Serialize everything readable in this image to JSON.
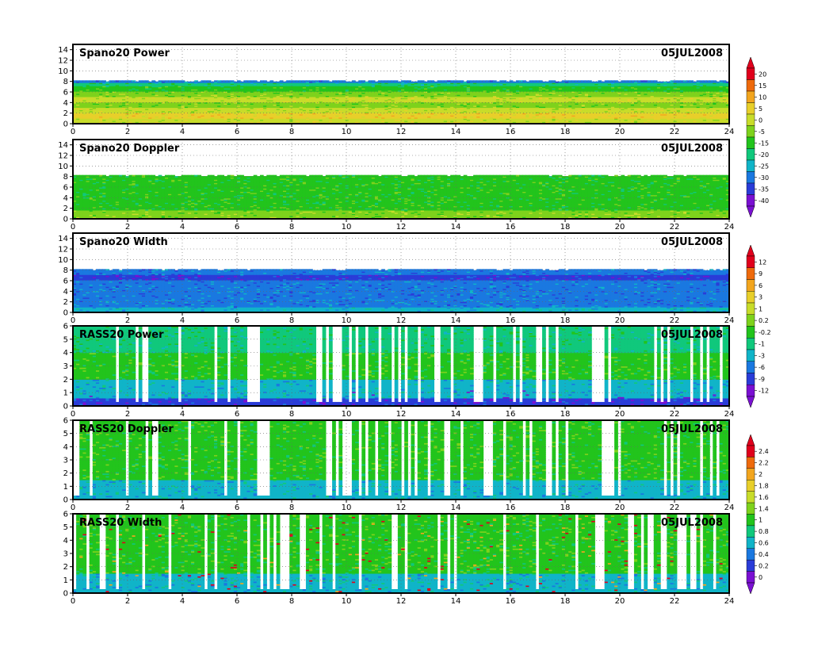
{
  "chart_data": [
    {
      "type": "heatmap",
      "title": "Spano20 Power",
      "date": "05JUL2008",
      "xlim": [
        0,
        24
      ],
      "x_ticks": [
        0,
        2,
        4,
        6,
        8,
        10,
        12,
        14,
        16,
        18,
        20,
        22,
        24
      ],
      "ylim": [
        0,
        15
      ],
      "y_ticks": [
        0,
        2,
        4,
        6,
        8,
        10,
        12,
        14
      ],
      "grid": true,
      "data_top_y": 8.2,
      "colorbar": {
        "levels": [
          "20",
          "15",
          "10",
          "5",
          "0",
          "-5",
          "-15",
          "-20",
          "-25",
          "-30",
          "-35",
          "-40"
        ],
        "colors": [
          "#e0001c",
          "#ee6a0c",
          "#f2a51e",
          "#e8cf2a",
          "#c8dc2a",
          "#7ed21c",
          "#22c41c",
          "#10c87c",
          "#10b4c8",
          "#1a78e0",
          "#2a3cd8",
          "#7a10d2"
        ]
      },
      "profile": [
        {
          "h": 0,
          "color": "#c8dc2a"
        },
        {
          "h": 1,
          "color": "#e8cf2a"
        },
        {
          "h": 2,
          "color": "#c8dc2a"
        },
        {
          "h": 3,
          "color": "#7ed21c"
        },
        {
          "h": 4,
          "color": "#c8dc2a"
        },
        {
          "h": 5,
          "color": "#7ed21c"
        },
        {
          "h": 6,
          "color": "#22c41c"
        },
        {
          "h": 7,
          "color": "#10c87c"
        },
        {
          "h": 7.6,
          "color": "#1a78e0"
        }
      ]
    },
    {
      "type": "heatmap",
      "title": "Spano20 Doppler",
      "date": "05JUL2008",
      "xlim": [
        0,
        24
      ],
      "x_ticks": [
        0,
        2,
        4,
        6,
        8,
        10,
        12,
        14,
        16,
        18,
        20,
        22,
        24
      ],
      "ylim": [
        0,
        15
      ],
      "y_ticks": [
        0,
        2,
        4,
        6,
        8,
        10,
        12,
        14
      ],
      "grid": true,
      "data_top_y": 8.3,
      "colorbar": null,
      "profile": [
        {
          "h": 0,
          "color": "#7ed21c"
        },
        {
          "h": 1.5,
          "color": "#22c41c"
        },
        {
          "h": 6,
          "color": "#22c41c"
        }
      ]
    },
    {
      "type": "heatmap",
      "title": "Spano20 Width",
      "date": "05JUL2008",
      "xlim": [
        0,
        24
      ],
      "x_ticks": [
        0,
        2,
        4,
        6,
        8,
        10,
        12,
        14,
        16,
        18,
        20,
        22,
        24
      ],
      "ylim": [
        0,
        15
      ],
      "y_ticks": [
        0,
        2,
        4,
        6,
        8,
        10,
        12,
        14
      ],
      "grid": true,
      "data_top_y": 8.2,
      "colorbar": {
        "levels": [
          "12",
          "9",
          "6",
          "3",
          "1",
          "0.2",
          "-0.2",
          "-1",
          "-3",
          "-6",
          "-9",
          "-12"
        ],
        "colors": [
          "#e0001c",
          "#ee6a0c",
          "#f2a51e",
          "#e8cf2a",
          "#c8dc2a",
          "#7ed21c",
          "#22c41c",
          "#10c87c",
          "#10b4c8",
          "#1a78e0",
          "#2a3cd8",
          "#7a10d2"
        ]
      },
      "profile": [
        {
          "h": 0,
          "color": "#10b4c8"
        },
        {
          "h": 1,
          "color": "#1a78e0"
        },
        {
          "h": 6,
          "color": "#2a3cd8"
        },
        {
          "h": 7,
          "color": "#1a78e0"
        }
      ]
    },
    {
      "type": "heatmap",
      "title": "RASS20 Power",
      "date": "05JUL2008",
      "xlim": [
        0,
        24
      ],
      "x_ticks": [
        0,
        2,
        4,
        6,
        8,
        10,
        12,
        14,
        16,
        18,
        20,
        22,
        24
      ],
      "ylim": [
        0,
        6
      ],
      "y_ticks": [
        0,
        1,
        2,
        3,
        4,
        5,
        6
      ],
      "grid": true,
      "data_top_y": 6,
      "colorbar": null,
      "profile": [
        {
          "h": 0,
          "color": "#2a3cd8"
        },
        {
          "h": 0.6,
          "color": "#10b4c8"
        },
        {
          "h": 2,
          "color": "#22c41c"
        },
        {
          "h": 4,
          "color": "#10c87c"
        }
      ]
    },
    {
      "type": "heatmap",
      "title": "RASS20 Doppler",
      "date": "05JUL2008",
      "xlim": [
        0,
        24
      ],
      "x_ticks": [
        0,
        2,
        4,
        6,
        8,
        10,
        12,
        14,
        16,
        18,
        20,
        22,
        24
      ],
      "ylim": [
        0,
        6
      ],
      "y_ticks": [
        0,
        1,
        2,
        3,
        4,
        5,
        6
      ],
      "grid": true,
      "data_top_y": 6,
      "colorbar": {
        "levels": [
          "2.4",
          "2.2",
          "2",
          "1.8",
          "1.6",
          "1.4",
          "1",
          "0.8",
          "0.6",
          "0.4",
          "0.2",
          "0"
        ],
        "colors": [
          "#e0001c",
          "#ee6a0c",
          "#f2a51e",
          "#e8cf2a",
          "#c8dc2a",
          "#7ed21c",
          "#22c41c",
          "#10c87c",
          "#10b4c8",
          "#1a78e0",
          "#2a3cd8",
          "#7a10d2"
        ]
      },
      "profile": [
        {
          "h": 0,
          "color": "#10b4c8"
        },
        {
          "h": 1.5,
          "color": "#22c41c"
        },
        {
          "h": 4,
          "color": "#22c41c"
        }
      ]
    },
    {
      "type": "heatmap",
      "title": "RASS20 Width",
      "date": "05JUL2008",
      "xlim": [
        0,
        24
      ],
      "x_ticks": [
        0,
        2,
        4,
        6,
        8,
        10,
        12,
        14,
        16,
        18,
        20,
        22,
        24
      ],
      "ylim": [
        0,
        6
      ],
      "y_ticks": [
        0,
        1,
        2,
        3,
        4,
        5,
        6
      ],
      "grid": true,
      "data_top_y": 6,
      "colorbar": null,
      "profile": [
        {
          "h": 0,
          "color": "#10b4c8"
        },
        {
          "h": 1.5,
          "color": "#22c41c"
        },
        {
          "h": 4,
          "color": "#22c41c"
        }
      ]
    }
  ]
}
